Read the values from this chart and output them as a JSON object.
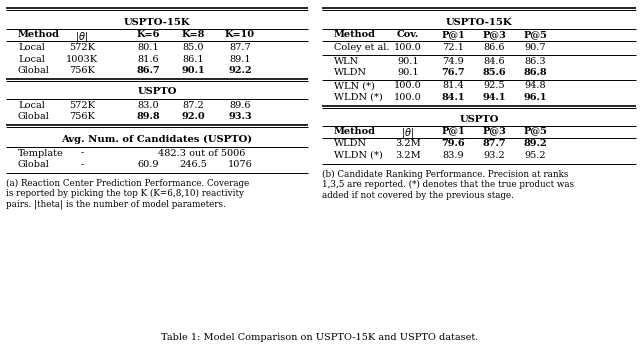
{
  "left_table": {
    "title1": "USPTO-15K",
    "rows1": [
      [
        "Local",
        "572K",
        "80.1",
        "85.0",
        "87.7",
        [
          false,
          false,
          false,
          false,
          false
        ]
      ],
      [
        "Local",
        "1003K",
        "81.6",
        "86.1",
        "89.1",
        [
          false,
          false,
          false,
          false,
          false
        ]
      ],
      [
        "Global",
        "756K",
        "86.7",
        "90.1",
        "92.2",
        [
          false,
          false,
          true,
          true,
          true
        ]
      ]
    ],
    "title2": "USPTO",
    "rows2": [
      [
        "Local",
        "572K",
        "83.0",
        "87.2",
        "89.6",
        [
          false,
          false,
          false,
          false,
          false
        ]
      ],
      [
        "Global",
        "756K",
        "89.8",
        "92.0",
        "93.3",
        [
          false,
          false,
          true,
          true,
          true
        ]
      ]
    ],
    "title3": "Avg. Num. of Candidates (USPTO)",
    "rows3_template": [
      "Template",
      "-",
      "482.3 out of 5006"
    ],
    "rows3_global": [
      "Global",
      "-",
      "60.9",
      "246.5",
      "1076"
    ]
  },
  "right_table": {
    "title1": "USPTO-15K",
    "rows1_a": [
      [
        "Coley et al.",
        "100.0",
        "72.1",
        "86.6",
        "90.7",
        [
          false,
          false,
          false,
          false,
          false
        ]
      ]
    ],
    "rows1_b": [
      [
        "WLN",
        "90.1",
        "74.9",
        "84.6",
        "86.3",
        [
          false,
          false,
          false,
          false,
          false
        ]
      ],
      [
        "WLDN",
        "90.1",
        "76.7",
        "85.6",
        "86.8",
        [
          false,
          false,
          true,
          true,
          true
        ]
      ]
    ],
    "rows1_c": [
      [
        "WLN (*)",
        "100.0",
        "81.4",
        "92.5",
        "94.8",
        [
          false,
          false,
          false,
          false,
          false
        ]
      ],
      [
        "WLDN (*)",
        "100.0",
        "84.1",
        "94.1",
        "96.1",
        [
          false,
          false,
          true,
          true,
          true
        ]
      ]
    ],
    "title2": "USPTO",
    "rows2": [
      [
        "WLDN",
        "3.2M",
        "79.6",
        "87.7",
        "89.2",
        [
          false,
          false,
          true,
          true,
          true
        ]
      ],
      [
        "WLDN (*)",
        "3.2M",
        "83.9",
        "93.2",
        "95.2",
        [
          false,
          false,
          false,
          false,
          false
        ]
      ]
    ]
  },
  "lheaders": [
    "Method",
    "|theta|",
    "K=6",
    "K=8",
    "K=10"
  ],
  "rheaders1": [
    "Method",
    "Cov.",
    "P@1",
    "P@3",
    "P@5"
  ],
  "rheaders2": [
    "Method",
    "|theta|",
    "P@1",
    "P@3",
    "P@5"
  ],
  "caption_left": "(a) Reaction Center Prediction Performance. Coverage\nis reported by picking the top K (K=6,8,10) reactivity\npairs. |theta| is the number of model parameters.",
  "caption_right": "(b) Candidate Ranking Performance. Precision at ranks\n1,3,5 are reported. (*) denotes that the true product was\nadded if not covered by the previous stage.",
  "main_caption": "Table 1: Model Comparison on USPTO-15K and USPTO dataset."
}
